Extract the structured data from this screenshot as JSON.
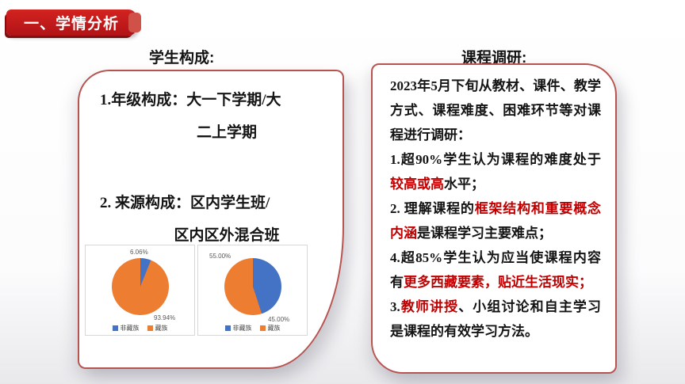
{
  "title_banner": {
    "label": "一、学情分析"
  },
  "columns": {
    "left_header": "学生构成:",
    "right_header": "课程调研:"
  },
  "student_card": {
    "lines": [
      {
        "text": "1.年级构成：大一下学期/大",
        "cont": false
      },
      {
        "text": "二上学期",
        "cont": true
      },
      {
        "text": "2. 来源构成：区内学生班/",
        "cont": false
      },
      {
        "text": "区内区外混合班",
        "cont": true
      }
    ]
  },
  "survey_card": {
    "paragraphs": [
      {
        "runs": [
          {
            "text": "2023年5月下旬从教材、课件、教学方式、课程难度、困难环节等对课程进行调研：",
            "red": false
          }
        ]
      },
      {
        "runs": [
          {
            "text": "1.超90%学生认为课程的难度处于",
            "red": false
          },
          {
            "text": "较高或高",
            "red": true
          },
          {
            "text": "水平；",
            "red": false
          }
        ]
      },
      {
        "runs": [
          {
            "text": "2. 理解课程的",
            "red": false
          },
          {
            "text": "框架结构和重要概念内涵",
            "red": true
          },
          {
            "text": "是课程学习主要难点；",
            "red": false
          }
        ]
      },
      {
        "runs": [
          {
            "text": "4.超85%学生认为应当使课程内容有",
            "red": false
          },
          {
            "text": "更多西藏要素，贴近生活现实；",
            "red": true
          }
        ]
      },
      {
        "runs": [
          {
            "text": "3.",
            "red": false
          },
          {
            "text": "教师讲授",
            "red": true
          },
          {
            "text": "、小组讨论和自主学习是课程的有效学习方法。",
            "red": false
          }
        ]
      }
    ]
  },
  "chart_data": [
    {
      "type": "pie",
      "labels": [
        "非藏族",
        "藏族"
      ],
      "values": [
        6.06,
        93.94
      ],
      "value_labels": [
        "6.06%",
        "93.94%"
      ],
      "colors": [
        "#4472C4",
        "#ED7D31"
      ],
      "legend_position": "bottom",
      "labels_outside": true
    },
    {
      "type": "pie",
      "labels": [
        "非藏族",
        "藏族"
      ],
      "values": [
        45.0,
        55.0
      ],
      "value_labels": [
        "55.00%",
        "45.00%"
      ],
      "label_slice_order": [
        "藏族",
        "非藏族"
      ],
      "colors": [
        "#4472C4",
        "#ED7D31"
      ],
      "legend_position": "bottom",
      "labels_outside": true
    }
  ],
  "colors": {
    "banner_red": "#c2191d",
    "banner_shadow": "#7a1113",
    "card_border": "#b85450",
    "highlight_text": "#c00000",
    "pie_blue": "#4472C4",
    "pie_orange": "#ED7D31"
  }
}
